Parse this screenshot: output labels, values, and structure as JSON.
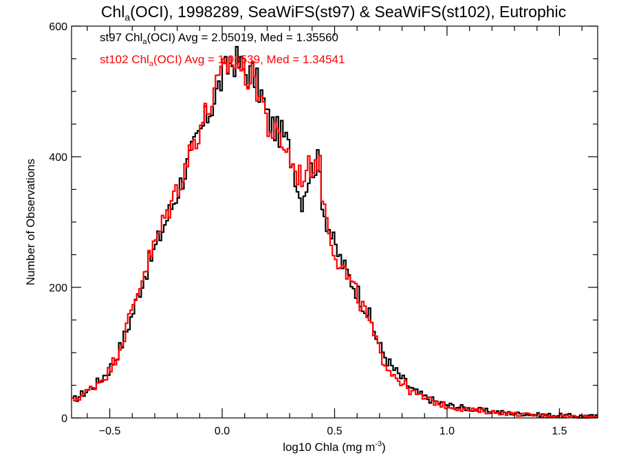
{
  "chart_data": {
    "type": "step-histogram",
    "title_parts": {
      "pre": "Chl",
      "sub": "a",
      "post": "(OCI), 1998289, SeaWiFS(st97) & SeaWiFS(st102), Eutrophic"
    },
    "xlabel_parts": {
      "pre": "log10 Chla (mg m",
      "sup": "-3",
      "post": ")"
    },
    "ylabel": "Number of Observations",
    "xlim": [
      -0.67,
      1.67
    ],
    "ylim": [
      0,
      600
    ],
    "xticks": [
      -0.5,
      0.0,
      0.5,
      1.0,
      1.5
    ],
    "xtick_labels": [
      "−0.5",
      "0.0",
      "0.5",
      "1.0",
      "1.5"
    ],
    "yticks": [
      0,
      200,
      400,
      600
    ],
    "ytick_labels": [
      "0",
      "200",
      "400",
      "600"
    ],
    "annotations": [
      {
        "pre": "st97 Chl",
        "sub": "a",
        "post": "(OCI) Avg = 2.05019, Med = 1.35560",
        "color": "#000000"
      },
      {
        "pre": "st102 Chl",
        "sub": "a",
        "post": "(OCI) Avg = 1.98539, Med = 1.34541",
        "color": "#ff0000"
      }
    ],
    "series": [
      {
        "color": "#000000",
        "x": [
          -0.67,
          -0.6,
          -0.55,
          -0.5,
          -0.45,
          -0.4,
          -0.35,
          -0.3,
          -0.25,
          -0.2,
          -0.15,
          -0.1,
          -0.05,
          0.0,
          0.03,
          0.06,
          0.1,
          0.14,
          0.18,
          0.2,
          0.24,
          0.28,
          0.32,
          0.35,
          0.38,
          0.4,
          0.43,
          0.45,
          0.5,
          0.55,
          0.6,
          0.65,
          0.7,
          0.75,
          0.8,
          0.85,
          0.9,
          0.95,
          1.0,
          1.1,
          1.2,
          1.3,
          1.4,
          1.5,
          1.6,
          1.67
        ],
        "y": [
          25,
          42,
          55,
          75,
          110,
          158,
          215,
          258,
          302,
          345,
          392,
          435,
          475,
          520,
          540,
          548,
          530,
          525,
          490,
          460,
          440,
          430,
          385,
          330,
          365,
          385,
          392,
          320,
          262,
          225,
          195,
          160,
          110,
          80,
          60,
          42,
          32,
          25,
          20,
          14,
          10,
          7,
          5,
          4,
          3,
          2
        ]
      },
      {
        "color": "#ff0000",
        "x": [
          -0.67,
          -0.6,
          -0.55,
          -0.5,
          -0.45,
          -0.4,
          -0.35,
          -0.3,
          -0.25,
          -0.2,
          -0.15,
          -0.1,
          -0.05,
          0.0,
          0.03,
          0.06,
          0.1,
          0.14,
          0.18,
          0.2,
          0.24,
          0.28,
          0.32,
          0.35,
          0.38,
          0.4,
          0.43,
          0.45,
          0.5,
          0.55,
          0.6,
          0.65,
          0.7,
          0.75,
          0.8,
          0.85,
          0.9,
          0.95,
          1.0,
          1.1,
          1.2,
          1.3,
          1.4,
          1.5,
          1.6,
          1.67
        ],
        "y": [
          25,
          40,
          55,
          72,
          112,
          165,
          222,
          265,
          310,
          352,
          400,
          445,
          482,
          525,
          545,
          545,
          528,
          520,
          488,
          450,
          430,
          418,
          380,
          370,
          378,
          390,
          400,
          330,
          255,
          220,
          188,
          150,
          100,
          72,
          54,
          38,
          30,
          24,
          18,
          12,
          9,
          6,
          4,
          3,
          2,
          2
        ]
      }
    ]
  }
}
